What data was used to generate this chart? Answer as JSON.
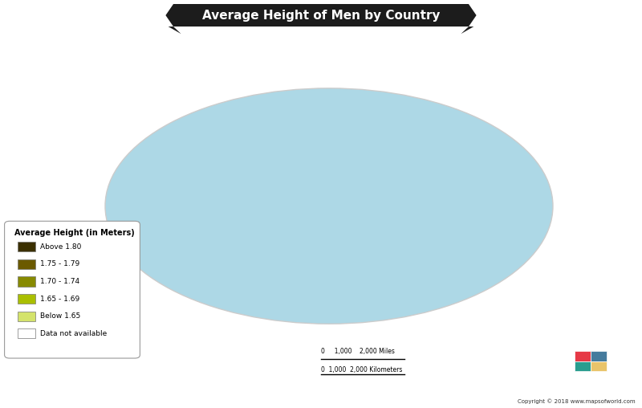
{
  "title": "Average Height of Men by Country",
  "background_color": "#ADD8E6",
  "ocean_color": "#ADD8E6",
  "legend_title": "Average Height (in Meters)",
  "legend_items": [
    {
      "label": "Above 1.80",
      "color": "#3B3000"
    },
    {
      "label": "1.75 - 1.79",
      "color": "#6B5A00"
    },
    {
      "label": "1.70 - 1.74",
      "color": "#878A00"
    },
    {
      "label": "1.65 - 1.69",
      "color": "#AABF00"
    },
    {
      "label": "Below 1.65",
      "color": "#D4E36B"
    },
    {
      "label": "Data not available",
      "color": "#FFFFFF"
    }
  ],
  "color_map": {
    "above_1.80": "#3B3000",
    "h175_179": "#6B5A00",
    "h170_174": "#878A00",
    "h165_169": "#AABF00",
    "below_1.65": "#D4E36B",
    "no_data": "#FFFFFF"
  },
  "name_map": {
    "Netherlands": "above_1.80",
    "Denmark": "above_1.80",
    "Norway": "above_1.80",
    "Germany": "above_1.80",
    "Croatia": "above_1.80",
    "Czech Rep.": "above_1.80",
    "Czechia": "above_1.80",
    "Slovakia": "above_1.80",
    "Bosnia and Herz.": "above_1.80",
    "Bosnia and Herzegovina": "above_1.80",
    "Iceland": "above_1.80",
    "Sweden": "above_1.80",
    "Finland": "above_1.80",
    "Estonia": "above_1.80",
    "Latvia": "above_1.80",
    "Lithuania": "above_1.80",
    "Belarus": "above_1.80",
    "Ukraine": "above_1.80",
    "Poland": "above_1.80",
    "Russia": "above_1.80",
    "Australia": "above_1.80",
    "Canada": "above_1.80",
    "United States of America": "above_1.80",
    "United States": "above_1.80",
    "New Zealand": "above_1.80",
    "Ireland": "above_1.80",
    "United Kingdom": "above_1.80",
    "Hungary": "above_1.80",
    "Slovenia": "above_1.80",
    "Austria": "above_1.80",
    "Switzerland": "above_1.80",
    "Belgium": "above_1.80",
    "Luxembourg": "above_1.80",
    "Montenegro": "above_1.80",
    "Serbia": "above_1.80",
    "France": "h175_179",
    "Spain": "h175_179",
    "Portugal": "h175_179",
    "Italy": "h175_179",
    "Greece": "h175_179",
    "Romania": "h175_179",
    "Bulgaria": "h175_179",
    "Moldova": "h175_179",
    "Albania": "h175_179",
    "Macedonia": "h175_179",
    "North Macedonia": "h175_179",
    "Turkey": "h175_179",
    "Kazakhstan": "h175_179",
    "Uzbekistan": "h175_179",
    "Kyrgyzstan": "h175_179",
    "Tajikistan": "h175_179",
    "Turkmenistan": "h175_179",
    "Afghanistan": "h175_179",
    "Iran": "h175_179",
    "Argentina": "h175_179",
    "Uruguay": "h175_179",
    "Chile": "h175_179",
    "Brazil": "h175_179",
    "Venezuela": "h175_179",
    "Colombia": "h175_179",
    "Georgia": "h175_179",
    "Armenia": "h175_179",
    "Azerbaijan": "h175_179",
    "Mongolia": "h175_179",
    "Israel": "h175_179",
    "Lebanon": "h175_179",
    "China": "h170_174",
    "Japan": "h170_174",
    "South Korea": "h170_174",
    "Korea": "h170_174",
    "Dem. Rep. Korea": "h170_174",
    "North Korea": "h170_174",
    "Cuba": "h170_174",
    "Pakistan": "h170_174",
    "Sudan": "h170_174",
    "S. Sudan": "h170_174",
    "South Sudan": "h170_174",
    "Egypt": "h170_174",
    "Libya": "h170_174",
    "Algeria": "h170_174",
    "Morocco": "h170_174",
    "Tunisia": "h170_174",
    "Nigeria": "h170_174",
    "Iraq": "h170_174",
    "Syria": "h170_174",
    "Jordan": "h170_174",
    "Saudi Arabia": "h170_174",
    "Oman": "h170_174",
    "United Arab Emirates": "h170_174",
    "UAE": "h170_174",
    "Kuwait": "h170_174",
    "Qatar": "h170_174",
    "Bahrain": "h170_174",
    "Thailand": "h165_169",
    "Vietnam": "h165_169",
    "Philippines": "h165_169",
    "Indonesia": "h165_169",
    "Myanmar": "h165_169",
    "Cambodia": "h165_169",
    "Laos": "h165_169",
    "Malaysia": "h165_169",
    "India": "h165_169",
    "Nepal": "h165_169",
    "Sri Lanka": "h165_169",
    "Mexico": "h165_169",
    "Honduras": "h165_169",
    "El Salvador": "h165_169",
    "Nicaragua": "h165_169",
    "Costa Rica": "h165_169",
    "Panama": "h165_169",
    "Peru": "h165_169",
    "Bolivia": "h165_169",
    "Ecuador": "h165_169",
    "Paraguay": "h165_169",
    "Ethiopia": "h165_169",
    "Somalia": "h165_169",
    "Kenya": "h165_169",
    "Tanzania": "h165_169",
    "Uganda": "h165_169",
    "Ghana": "h165_169",
    "Cameroon": "h165_169",
    "South Africa": "h165_169",
    "Mozambique": "h165_169",
    "Zimbabwe": "h165_169",
    "Zambia": "h165_169",
    "Angola": "h165_169",
    "Congo": "h165_169",
    "Dem. Rep. Congo": "h165_169",
    "Madagascar": "h165_169",
    "Yemen": "h165_169",
    "Mali": "h165_169",
    "Niger": "h165_169",
    "Chad": "h165_169",
    "Mauritania": "h165_169",
    "Senegal": "h165_169",
    "Guinea": "h165_169",
    "Sierra Leone": "h165_169",
    "Liberia": "h165_169",
    "Ivory Coast": "h165_169",
    "Burkina Faso": "h165_169",
    "Benin": "h165_169",
    "Togo": "h165_169",
    "Central African Rep.": "h165_169",
    "Gabon": "h165_169",
    "Eq. Guinea": "h165_169",
    "Rwanda": "h165_169",
    "Burundi": "h165_169",
    "Malawi": "h165_169",
    "Botswana": "h165_169",
    "Namibia": "h165_169",
    "Lesotho": "h165_169",
    "Swaziland": "h165_169",
    "eSwatini": "h165_169",
    "Eritrea": "h165_169",
    "Djibouti": "h165_169",
    "Haiti": "h165_169",
    "Dominican Rep.": "h165_169",
    "Trinidad and Tobago": "h165_169",
    "Jamaica": "h165_169",
    "Papua New Guinea": "h165_169",
    "Timor-Leste": "h165_169",
    "Guyana": "h165_169",
    "Suriname": "h165_169",
    "Bangladesh": "below_1.65",
    "Guatemala": "below_1.65"
  },
  "copyright": "Copyright © 2018 www.mapsofworld.com",
  "figsize": [
    8.0,
    5.08
  ],
  "dpi": 100
}
